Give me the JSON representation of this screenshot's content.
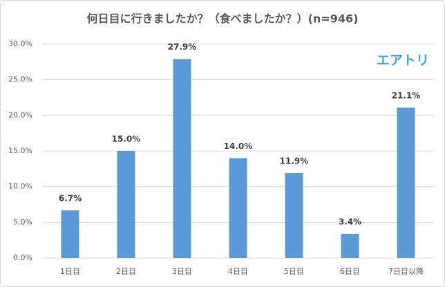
{
  "chart_data": {
    "type": "bar",
    "title": "何日目に行きましたか？（食べましたか？）(n=946)",
    "annotation": "エアトリ",
    "categories": [
      "1日目",
      "2日目",
      "3日目",
      "4日目",
      "5日目",
      "6日目",
      "7日目以降"
    ],
    "values": [
      6.7,
      15.0,
      27.9,
      14.0,
      11.9,
      3.4,
      21.1
    ],
    "value_labels": [
      "6.7%",
      "15.0%",
      "27.9%",
      "14.0%",
      "11.9%",
      "3.4%",
      "21.1%"
    ],
    "color": "#5b9bd5",
    "ylim": [
      0,
      30
    ],
    "yticks": [
      {
        "value": 0,
        "label": "0.0%"
      },
      {
        "value": 5,
        "label": "5.0%"
      },
      {
        "value": 10,
        "label": "10.0%"
      },
      {
        "value": 15,
        "label": "15.0%"
      },
      {
        "value": 20,
        "label": "20.0%"
      },
      {
        "value": 25,
        "label": "25.0%"
      },
      {
        "value": 30,
        "label": "30.0%"
      }
    ],
    "grid": true
  }
}
